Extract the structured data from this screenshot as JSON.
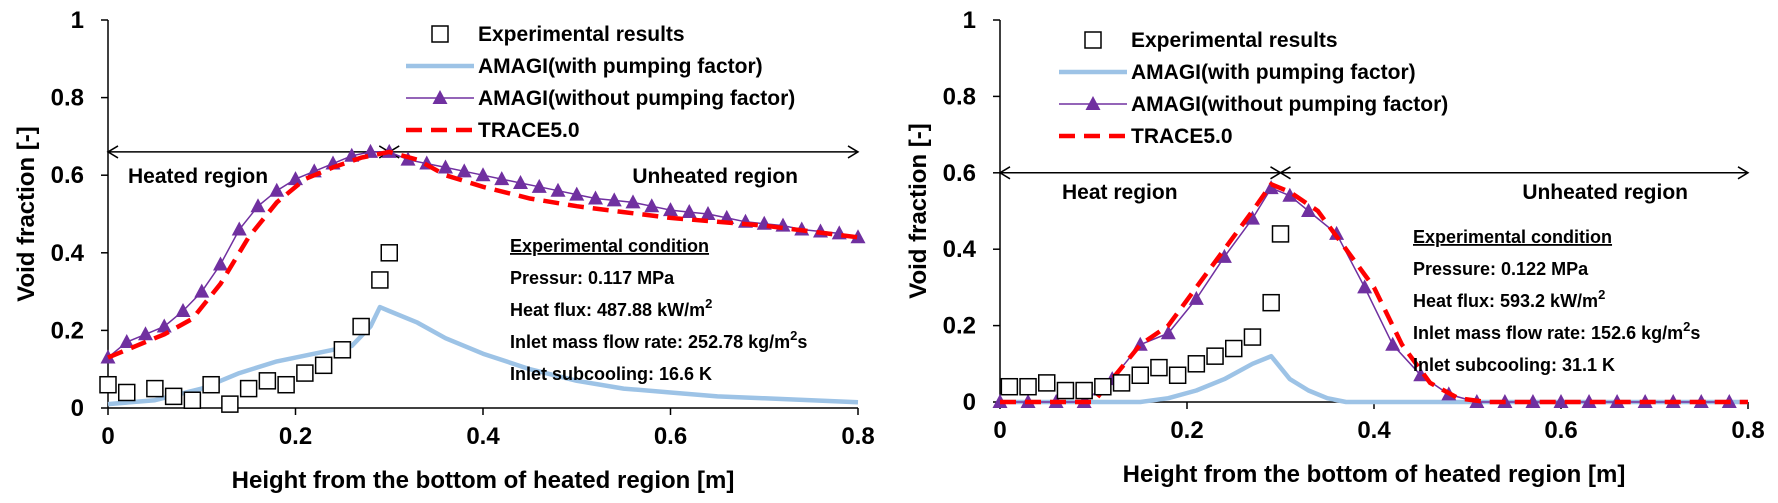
{
  "colors": {
    "with_pumping": "#9dc3e6",
    "without_pumping": "#7030a0",
    "trace": "#ff0000",
    "experimental": "#000000"
  },
  "chart_data": [
    {
      "type": "line",
      "xlabel": "Height from the bottom of heated region [m]",
      "ylabel": "Void fraction [-]",
      "xlim": [
        0,
        0.8
      ],
      "ylim": [
        0,
        1
      ],
      "xticks": [
        "0",
        "0.2",
        "0.4",
        "0.6",
        "0.8"
      ],
      "yticks": [
        "0",
        "0.2",
        "0.4",
        "0.6",
        "0.8",
        "1"
      ],
      "legend": [
        "Experimental results",
        "AMAGI(with pumping factor)",
        "AMAGI(without pumping factor)",
        "TRACE5.0"
      ],
      "legend_position": "top-right",
      "regions": {
        "left": "Heated region",
        "right": "Unheated region",
        "boundary_x": 0.3,
        "y": 0.66
      },
      "condition": {
        "title": "Experimental condition",
        "lines": [
          "Pressur: 0.117 MPa",
          {
            "prefix": "Heat flux: 487.88 kW/m",
            "sup": "2",
            "suffix": ""
          },
          {
            "prefix": "Inlet mass flow rate: 252.78 kg/m",
            "sup": "2",
            "suffix": "s"
          },
          "Inlet subcooling: 16.6 K"
        ]
      },
      "series": [
        {
          "name": "Experimental results",
          "style": "square",
          "x": [
            0.0,
            0.02,
            0.05,
            0.07,
            0.09,
            0.11,
            0.13,
            0.15,
            0.17,
            0.19,
            0.21,
            0.23,
            0.25,
            0.27,
            0.29,
            0.3
          ],
          "y": [
            0.06,
            0.04,
            0.05,
            0.03,
            0.02,
            0.06,
            0.01,
            0.05,
            0.07,
            0.06,
            0.09,
            0.11,
            0.15,
            0.21,
            0.33,
            0.4
          ]
        },
        {
          "name": "AMAGI(with pumping factor)",
          "style": "line",
          "x": [
            0.0,
            0.05,
            0.1,
            0.14,
            0.18,
            0.22,
            0.26,
            0.28,
            0.29,
            0.3,
            0.33,
            0.36,
            0.4,
            0.45,
            0.5,
            0.55,
            0.6,
            0.65,
            0.7,
            0.75,
            0.8
          ],
          "y": [
            0.01,
            0.02,
            0.05,
            0.09,
            0.12,
            0.14,
            0.16,
            0.21,
            0.26,
            0.25,
            0.22,
            0.18,
            0.14,
            0.1,
            0.07,
            0.05,
            0.04,
            0.03,
            0.025,
            0.02,
            0.015
          ]
        },
        {
          "name": "AMAGI(without pumping factor)",
          "style": "triangle",
          "x": [
            0.0,
            0.02,
            0.04,
            0.06,
            0.08,
            0.1,
            0.12,
            0.14,
            0.16,
            0.18,
            0.2,
            0.22,
            0.24,
            0.26,
            0.28,
            0.3,
            0.32,
            0.34,
            0.36,
            0.38,
            0.4,
            0.42,
            0.44,
            0.46,
            0.48,
            0.5,
            0.52,
            0.54,
            0.56,
            0.58,
            0.6,
            0.62,
            0.64,
            0.66,
            0.68,
            0.7,
            0.72,
            0.74,
            0.76,
            0.78,
            0.8
          ],
          "y": [
            0.13,
            0.17,
            0.19,
            0.21,
            0.25,
            0.3,
            0.37,
            0.46,
            0.52,
            0.56,
            0.59,
            0.61,
            0.63,
            0.65,
            0.66,
            0.66,
            0.64,
            0.63,
            0.62,
            0.61,
            0.6,
            0.59,
            0.58,
            0.57,
            0.56,
            0.55,
            0.54,
            0.535,
            0.53,
            0.52,
            0.51,
            0.505,
            0.5,
            0.49,
            0.48,
            0.475,
            0.47,
            0.46,
            0.455,
            0.45,
            0.44
          ]
        },
        {
          "name": "TRACE5.0",
          "style": "dash",
          "x": [
            0.0,
            0.03,
            0.06,
            0.09,
            0.12,
            0.15,
            0.18,
            0.21,
            0.24,
            0.27,
            0.3,
            0.33,
            0.36,
            0.4,
            0.45,
            0.5,
            0.55,
            0.6,
            0.65,
            0.7,
            0.75,
            0.8
          ],
          "y": [
            0.13,
            0.16,
            0.19,
            0.23,
            0.32,
            0.44,
            0.53,
            0.59,
            0.62,
            0.645,
            0.66,
            0.64,
            0.6,
            0.57,
            0.54,
            0.52,
            0.505,
            0.49,
            0.48,
            0.47,
            0.455,
            0.44
          ]
        }
      ]
    },
    {
      "type": "line",
      "xlabel": "Height from the bottom of heated region [m]",
      "ylabel": "Void fraction [-]",
      "xlim": [
        0,
        0.8
      ],
      "ylim": [
        0,
        1
      ],
      "xticks": [
        "0",
        "0.2",
        "0.4",
        "0.6",
        "0.8"
      ],
      "yticks": [
        "0",
        "0.2",
        "0.4",
        "0.6",
        "0.8",
        "1"
      ],
      "legend": [
        "Experimental results",
        "AMAGI(with pumping factor)",
        "AMAGI(without pumping factor)",
        "TRACE5.0"
      ],
      "legend_position": "top-center",
      "regions": {
        "left": "Heat region",
        "right": "Unheated region",
        "boundary_x": 0.3,
        "y": 0.6
      },
      "condition": {
        "title": "Experimental condition",
        "lines": [
          "Pressure: 0.122 MPa",
          {
            "prefix": "Heat flux: 593.2 kW/m",
            "sup": "2",
            "suffix": ""
          },
          {
            "prefix": "Inlet mass flow rate: 152.6 kg/m",
            "sup": "2",
            "suffix": "s"
          },
          "Inlet subcooling:  31.1 K"
        ]
      },
      "series": [
        {
          "name": "Experimental results",
          "style": "square",
          "x": [
            0.01,
            0.03,
            0.05,
            0.07,
            0.09,
            0.11,
            0.13,
            0.15,
            0.17,
            0.19,
            0.21,
            0.23,
            0.25,
            0.27,
            0.29,
            0.3
          ],
          "y": [
            0.04,
            0.04,
            0.05,
            0.03,
            0.03,
            0.04,
            0.05,
            0.07,
            0.09,
            0.07,
            0.1,
            0.12,
            0.14,
            0.17,
            0.26,
            0.44
          ]
        },
        {
          "name": "AMAGI(with pumping factor)",
          "style": "line",
          "x": [
            0.0,
            0.1,
            0.15,
            0.18,
            0.21,
            0.24,
            0.27,
            0.29,
            0.31,
            0.33,
            0.35,
            0.37,
            0.4,
            0.45,
            0.5,
            0.6,
            0.7,
            0.8
          ],
          "y": [
            0.0,
            0.0,
            0.0,
            0.01,
            0.03,
            0.06,
            0.1,
            0.12,
            0.06,
            0.03,
            0.01,
            0.0,
            0.0,
            0.0,
            0.0,
            0.0,
            0.0,
            0.0
          ]
        },
        {
          "name": "AMAGI(without pumping factor)",
          "style": "triangle",
          "x": [
            0.0,
            0.03,
            0.06,
            0.09,
            0.12,
            0.15,
            0.18,
            0.21,
            0.24,
            0.27,
            0.29,
            0.31,
            0.33,
            0.36,
            0.39,
            0.42,
            0.45,
            0.48,
            0.51,
            0.54,
            0.57,
            0.6,
            0.63,
            0.66,
            0.69,
            0.72,
            0.75,
            0.78
          ],
          "y": [
            0.0,
            0.0,
            0.0,
            0.0,
            0.06,
            0.15,
            0.18,
            0.27,
            0.38,
            0.48,
            0.56,
            0.54,
            0.5,
            0.44,
            0.3,
            0.15,
            0.07,
            0.02,
            0.0,
            0.0,
            0.0,
            0.0,
            0.0,
            0.0,
            0.0,
            0.0,
            0.0,
            0.0
          ]
        },
        {
          "name": "TRACE5.0",
          "style": "dash",
          "x": [
            0.0,
            0.05,
            0.1,
            0.12,
            0.15,
            0.18,
            0.21,
            0.24,
            0.27,
            0.29,
            0.31,
            0.34,
            0.37,
            0.4,
            0.43,
            0.46,
            0.49,
            0.52,
            0.6,
            0.7,
            0.8
          ],
          "y": [
            0.0,
            0.0,
            0.0,
            0.06,
            0.15,
            0.2,
            0.3,
            0.4,
            0.5,
            0.57,
            0.55,
            0.5,
            0.4,
            0.3,
            0.15,
            0.05,
            0.01,
            0.0,
            0.0,
            0.0,
            0.0
          ]
        }
      ]
    }
  ]
}
